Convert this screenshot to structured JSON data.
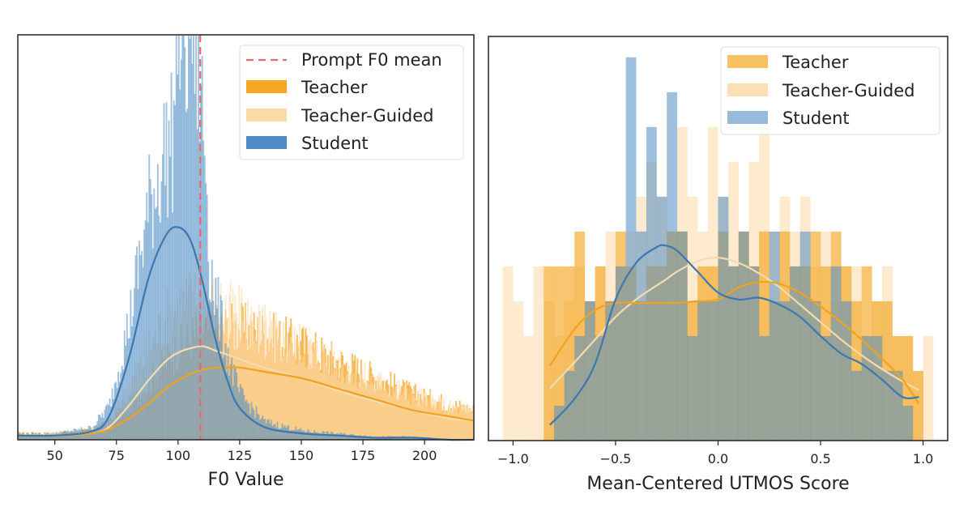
{
  "colors": {
    "teacher": "#f5a623",
    "teacher_guided": "#fbd9a8",
    "student": "#4f8cc4",
    "prompt_mean": "#e86b6b"
  },
  "chart_data": [
    {
      "type": "histogram",
      "xlabel": "F0 Value",
      "ylabel": "",
      "xlim": [
        35,
        220
      ],
      "xticks": [
        "50",
        "75",
        "100",
        "125",
        "150",
        "175",
        "200"
      ],
      "xtick_values": [
        50,
        75,
        100,
        125,
        150,
        175,
        200
      ],
      "grid": false,
      "legend_placement": "upper-right",
      "legend": [
        "Prompt F0 mean",
        "Teacher",
        "Teacher-Guided",
        "Student"
      ],
      "annotations": {
        "prompt_f0_mean": 109
      },
      "kde": {
        "x": [
          35,
          50,
          65,
          72,
          80,
          88,
          95,
          100,
          105,
          110,
          115,
          120,
          125,
          135,
          150,
          165,
          180,
          195,
          210,
          220
        ],
        "series": [
          {
            "name": "Student",
            "y": [
              0.02,
              0.02,
              0.04,
              0.11,
              0.38,
              0.76,
              0.96,
              1.0,
              0.94,
              0.74,
              0.48,
              0.28,
              0.15,
              0.06,
              0.03,
              0.02,
              0.01,
              0.01,
              0.0,
              0.0
            ]
          },
          {
            "name": "Teacher-Guided",
            "y": [
              0.02,
              0.02,
              0.03,
              0.06,
              0.16,
              0.28,
              0.37,
              0.41,
              0.43,
              0.44,
              0.42,
              0.4,
              0.38,
              0.34,
              0.29,
              0.23,
              0.18,
              0.14,
              0.1,
              0.09
            ]
          },
          {
            "name": "Teacher",
            "y": [
              0.02,
              0.02,
              0.03,
              0.05,
              0.1,
              0.17,
              0.24,
              0.28,
              0.31,
              0.33,
              0.34,
              0.34,
              0.34,
              0.32,
              0.29,
              0.24,
              0.19,
              0.14,
              0.11,
              0.09
            ]
          }
        ]
      },
      "hist_peaks": {
        "Student": 1.4,
        "Teacher-Guided": 0.46,
        "Teacher": 0.36
      }
    },
    {
      "type": "histogram",
      "xlabel": "Mean-Centered UTMOS Score",
      "ylabel": "",
      "xlim": [
        -1.12,
        1.12
      ],
      "xticks": [
        "−1.0",
        "−0.5",
        "0.0",
        "0.5",
        "1.0"
      ],
      "xtick_values": [
        -1.0,
        -0.5,
        0.0,
        0.5,
        1.0
      ],
      "grid": false,
      "legend_placement": "upper-right",
      "legend": [
        "Teacher",
        "Teacher-Guided",
        "Student"
      ],
      "bin_width": 0.05,
      "bins_start": -1.05,
      "series": [
        {
          "name": "Teacher-Guided",
          "values": [
            5,
            4,
            3,
            5,
            4,
            3,
            4,
            5,
            4,
            5,
            6,
            5,
            6,
            7,
            8,
            7,
            6,
            9,
            7,
            6,
            9,
            7,
            8,
            6,
            8,
            9,
            6,
            7,
            6,
            7,
            5,
            6,
            4,
            5,
            5,
            3,
            4,
            5,
            3,
            3,
            2,
            3
          ]
        },
        {
          "name": "Teacher",
          "values": [
            0,
            0,
            0,
            0,
            5,
            5,
            5,
            6,
            4,
            5,
            4,
            6,
            5,
            4,
            5,
            5,
            6,
            6,
            4,
            5,
            5,
            6,
            5,
            6,
            5,
            6,
            4,
            6,
            5,
            5,
            6,
            5,
            6,
            5,
            4,
            5,
            4,
            4,
            3,
            3,
            2,
            0
          ]
        },
        {
          "name": "Student",
          "values": [
            0,
            0,
            0,
            0,
            0,
            1,
            2,
            3,
            4,
            3,
            4,
            5,
            11,
            6,
            9,
            7,
            10,
            6,
            3,
            4,
            4,
            7,
            5,
            6,
            5,
            3,
            6,
            4,
            5,
            6,
            4,
            3,
            5,
            4,
            2,
            3,
            3,
            2,
            2,
            1,
            0,
            0
          ]
        }
      ],
      "kde": {
        "x": [
          -0.82,
          -0.7,
          -0.6,
          -0.5,
          -0.4,
          -0.3,
          -0.26,
          -0.2,
          -0.1,
          0.0,
          0.1,
          0.2,
          0.3,
          0.4,
          0.5,
          0.6,
          0.7,
          0.8,
          0.9,
          0.98
        ],
        "series": [
          {
            "name": "Teacher",
            "y": [
              2.15,
              3.2,
              3.75,
              3.95,
              3.95,
              3.95,
              3.95,
              3.95,
              4.0,
              4.05,
              4.4,
              4.55,
              4.5,
              4.25,
              3.85,
              3.4,
              2.9,
              2.35,
              1.75,
              1.05
            ]
          },
          {
            "name": "Teacher-Guided",
            "y": [
              1.5,
              2.25,
              2.9,
              3.55,
              4.05,
              4.45,
              4.6,
              4.85,
              5.15,
              5.25,
              5.1,
              4.8,
              4.4,
              3.9,
              3.4,
              2.9,
              2.45,
              2.05,
              1.7,
              1.45
            ]
          },
          {
            "name": "Student",
            "y": [
              0.45,
              1.2,
              2.2,
              4.05,
              5.1,
              5.55,
              5.6,
              5.45,
              4.85,
              4.25,
              4.05,
              4.1,
              3.9,
              3.55,
              3.0,
              2.5,
              2.2,
              1.75,
              1.25,
              1.25
            ]
          }
        ]
      },
      "ylim": [
        0,
        11.6
      ]
    }
  ]
}
